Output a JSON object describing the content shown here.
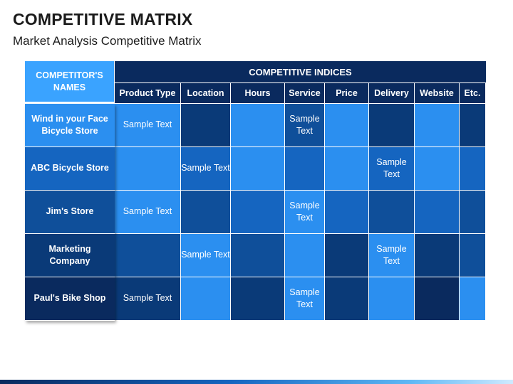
{
  "title": "COMPETITIVE MATRIX",
  "subtitle": "Market Analysis Competitive Matrix",
  "matrix": {
    "corner_label": "COMPETITOR'S NAMES",
    "indices_label": "COMPETITIVE INDICES",
    "columns": [
      "Product Type",
      "Location",
      "Hours",
      "Service",
      "Price",
      "Delivery",
      "Website",
      "Etc."
    ],
    "rows": [
      {
        "name": "Wind in your Face Bicycle Store",
        "header_color": "#2b8ff0",
        "cells": [
          "Sample Text",
          "",
          "",
          "Sample Text",
          "",
          "",
          "",
          ""
        ],
        "colors": [
          "#2b8ff0",
          "#0a3a78",
          "#2b8ff0",
          "#0f4f9a",
          "#2b8ff0",
          "#0a3a78",
          "#2b8ff0",
          "#0a3a78"
        ]
      },
      {
        "name": "ABC Bicycle Store",
        "header_color": "#1565c0",
        "cells": [
          "",
          "Sample Text",
          "",
          "",
          "",
          "Sample Text",
          "",
          ""
        ],
        "colors": [
          "#2b8ff0",
          "#1565c0",
          "#2b8ff0",
          "#1565c0",
          "#2b8ff0",
          "#1565c0",
          "#2b8ff0",
          "#1565c0"
        ]
      },
      {
        "name": "Jim's Store",
        "header_color": "#0f4f9a",
        "cells": [
          "Sample Text",
          "",
          "",
          "Sample Text",
          "",
          "",
          "",
          ""
        ],
        "colors": [
          "#2b8ff0",
          "#0f4f9a",
          "#1565c0",
          "#2b8ff0",
          "#1565c0",
          "#0f4f9a",
          "#1565c0",
          "#0f4f9a"
        ]
      },
      {
        "name": "Marketing Company",
        "header_color": "#0a3a78",
        "cells": [
          "",
          "Sample Text",
          "",
          "",
          "",
          "Sample Text",
          "",
          ""
        ],
        "colors": [
          "#0f4f9a",
          "#2b8ff0",
          "#0f4f9a",
          "#2b8ff0",
          "#0a3a78",
          "#2b8ff0",
          "#0a3a78",
          "#0f4f9a"
        ]
      },
      {
        "name": "Paul's Bike Shop",
        "header_color": "#0a2a5e",
        "cells": [
          "Sample Text",
          "",
          "",
          "Sample Text",
          "",
          "",
          "",
          ""
        ],
        "colors": [
          "#0a3a78",
          "#2b8ff0",
          "#0a3a78",
          "#2b8ff0",
          "#0a3a78",
          "#2b8ff0",
          "#0a2a5e",
          "#2b8ff0"
        ]
      }
    ]
  }
}
